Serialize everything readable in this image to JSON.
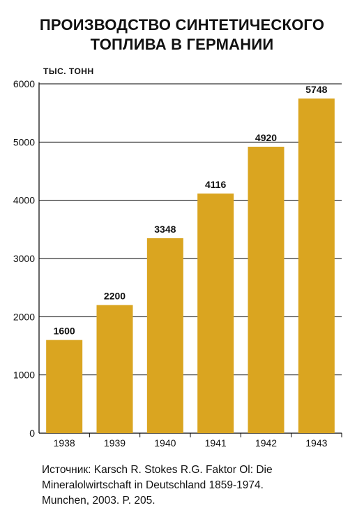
{
  "title_lines": [
    "ПРОИЗВОДСТВО СИНТЕТИЧЕСКОГО",
    "ТОПЛИВА В ГЕРМАНИИ"
  ],
  "source_lines": [
    "Источник: Karsch R. Stokes R.G. Faktor Ol: Die",
    "Mineralolwirtschaft in Deutschland 1859-1974.",
    "Munchen, 2003. P. 205."
  ],
  "colors": {
    "bar": "#DAA520",
    "grid": "#000000",
    "text": "#111111"
  },
  "chart_data": {
    "type": "bar",
    "title": "ПРОИЗВОДСТВО СИНТЕТИЧЕСКОГО ТОПЛИВА В ГЕРМАНИИ",
    "ylabel": "ТЫС. ТОНН",
    "xlabel": "",
    "categories": [
      "1938",
      "1939",
      "1940",
      "1941",
      "1942",
      "1943"
    ],
    "values": [
      1600,
      2200,
      3348,
      4116,
      4920,
      5748
    ],
    "data_labels": [
      "1600",
      "2200",
      "3348",
      "4116",
      "4920",
      "5748"
    ],
    "ylim": [
      0,
      6000
    ],
    "yticks": [
      0,
      1000,
      2000,
      3000,
      4000,
      5000,
      6000
    ],
    "grid": true
  }
}
